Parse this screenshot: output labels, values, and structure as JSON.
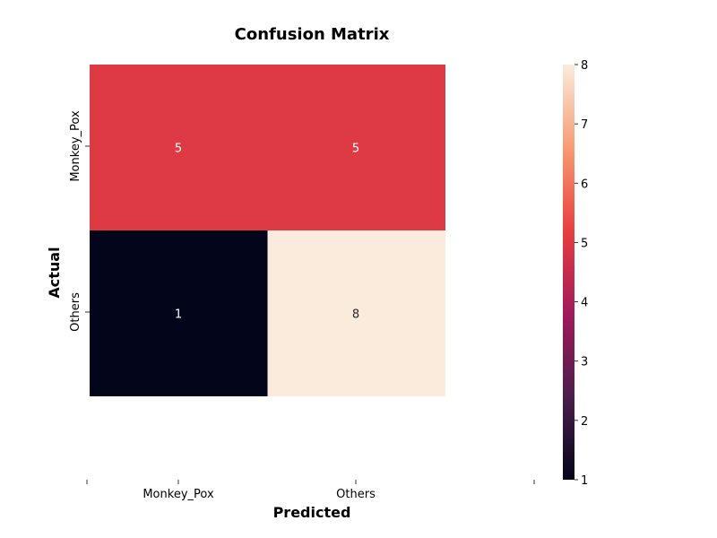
{
  "chart_data": {
    "type": "heatmap",
    "title": "Confusion Matrix",
    "xlabel": "Predicted",
    "ylabel": "Actual",
    "x_categories": [
      "Monkey_Pox",
      "Others"
    ],
    "y_categories": [
      "Monkey_Pox",
      "Others"
    ],
    "values": [
      [
        5,
        5
      ],
      [
        1,
        8
      ]
    ],
    "colorbar": {
      "range": [
        1,
        8
      ],
      "ticks": [
        "1",
        "2",
        "3",
        "4",
        "5",
        "6",
        "7",
        "8"
      ],
      "colormap": "rocket",
      "stops": [
        "#03051a",
        "#4c1d4b",
        "#a11a5b",
        "#e83f3f",
        "#f69c73",
        "#faebdd"
      ]
    },
    "cell_text_colors": {
      "on_dark": "#ffffff",
      "on_light": "#262626"
    }
  }
}
